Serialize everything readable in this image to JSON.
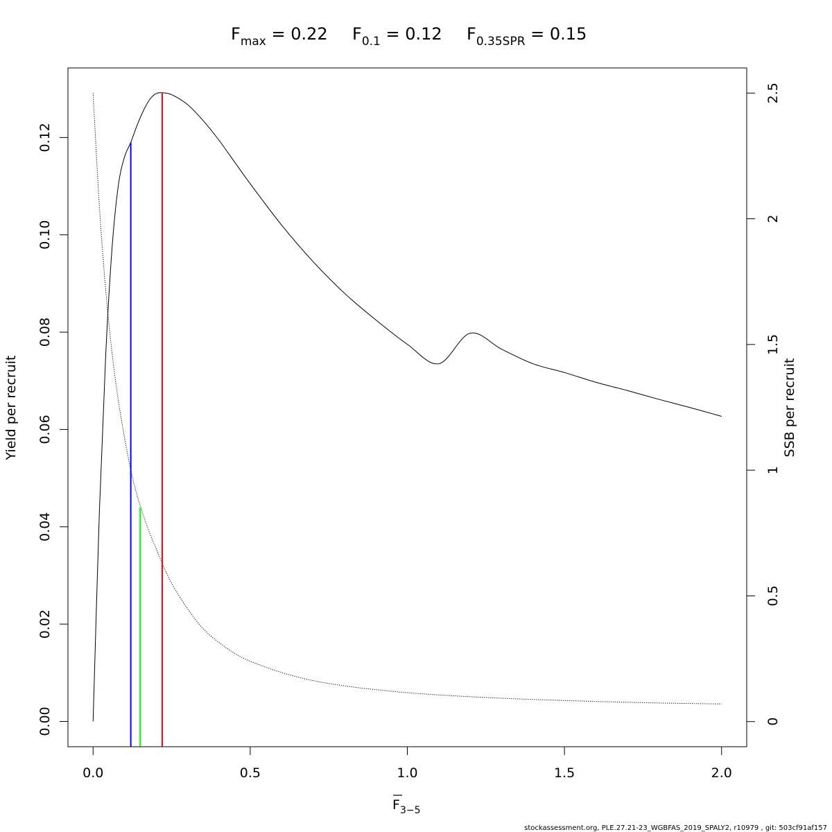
{
  "title": {
    "fmax": {
      "base": "F",
      "sub": "max",
      "rest": " = 0.22"
    },
    "f01": {
      "base": "F",
      "sub": "0.1",
      "rest": " = 0.12"
    },
    "fspr": {
      "base": "F",
      "sub": "0.35SPR",
      "rest": " = 0.15"
    }
  },
  "footer": "stockassessment.org, PLE.27.21-23_WGBFAS_2019_SPALY2, r10979 , git: 503cf91af157",
  "chart_data": {
    "type": "line",
    "xlabel": {
      "base": "F",
      "sub": "3−5"
    },
    "ylabel": "Yield per recruit",
    "y2label": "SSB per recruit",
    "xlim": [
      -0.08,
      2.08
    ],
    "ylim": [
      -0.0052,
      0.1343
    ],
    "y2lim": [
      -0.1,
      2.6
    ],
    "xticks": [
      0.0,
      0.5,
      1.0,
      1.5,
      2.0
    ],
    "xtick_labels": [
      "0.0",
      "0.5",
      "1.0",
      "1.5",
      "2.0"
    ],
    "yticks": [
      0.0,
      0.02,
      0.04,
      0.06,
      0.08,
      0.1,
      0.12
    ],
    "ytick_labels": [
      "0.00",
      "0.02",
      "0.04",
      "0.06",
      "0.08",
      "0.10",
      "0.12"
    ],
    "y2ticks": [
      0,
      0.5,
      1,
      1.5,
      2,
      2.5
    ],
    "y2tick_labels": [
      "0",
      "0.5",
      "1",
      "1.5",
      "2",
      "2.5"
    ],
    "grid": false,
    "series": [
      {
        "axis": "left",
        "style": "solid",
        "color": "#000000",
        "x": [
          0.0,
          0.02,
          0.04,
          0.06,
          0.08,
          0.1,
          0.12,
          0.14,
          0.16,
          0.18,
          0.2,
          0.22,
          0.25,
          0.3,
          0.35,
          0.4,
          0.45,
          0.5,
          0.6,
          0.7,
          0.8,
          0.9,
          1.0,
          1.1,
          1.2,
          1.3,
          1.4,
          1.5,
          1.6,
          1.7,
          1.8,
          1.9,
          2.0
        ],
        "y": [
          0.0,
          0.043,
          0.075,
          0.097,
          0.11,
          0.116,
          0.119,
          0.1225,
          0.1255,
          0.1278,
          0.129,
          0.1292,
          0.1288,
          0.1268,
          0.1235,
          0.1195,
          0.115,
          0.1105,
          0.102,
          0.0945,
          0.088,
          0.0825,
          0.0775,
          0.0735,
          0.0798,
          0.0765,
          0.0735,
          0.0717,
          0.0697,
          0.068,
          0.0662,
          0.0645,
          0.0627
        ]
      },
      {
        "axis": "right",
        "style": "dotted",
        "color": "#000000",
        "x": [
          0.0,
          0.02,
          0.04,
          0.06,
          0.08,
          0.1,
          0.12,
          0.14,
          0.16,
          0.18,
          0.2,
          0.22,
          0.25,
          0.3,
          0.35,
          0.4,
          0.45,
          0.5,
          0.6,
          0.7,
          0.8,
          0.9,
          1.0,
          1.1,
          1.2,
          1.3,
          1.4,
          1.5,
          1.6,
          1.7,
          1.8,
          1.9,
          2.0
        ],
        "y": [
          2.5,
          2.05,
          1.72,
          1.47,
          1.28,
          1.13,
          1.0,
          0.9,
          0.82,
          0.75,
          0.69,
          0.63,
          0.55,
          0.45,
          0.37,
          0.315,
          0.272,
          0.24,
          0.195,
          0.163,
          0.142,
          0.127,
          0.115,
          0.106,
          0.099,
          0.093,
          0.088,
          0.084,
          0.08,
          0.077,
          0.074,
          0.072,
          0.07
        ]
      }
    ],
    "reference_lines": [
      {
        "name": "F0.1",
        "x": 0.12,
        "y_top": 0.119,
        "color": "#0000ff"
      },
      {
        "name": "F0.35SPR",
        "x": 0.15,
        "y_top": 0.044,
        "color": "#00ff00"
      },
      {
        "name": "Fmax",
        "x": 0.22,
        "y_top": 0.1292,
        "color": "#ff0000"
      }
    ]
  }
}
